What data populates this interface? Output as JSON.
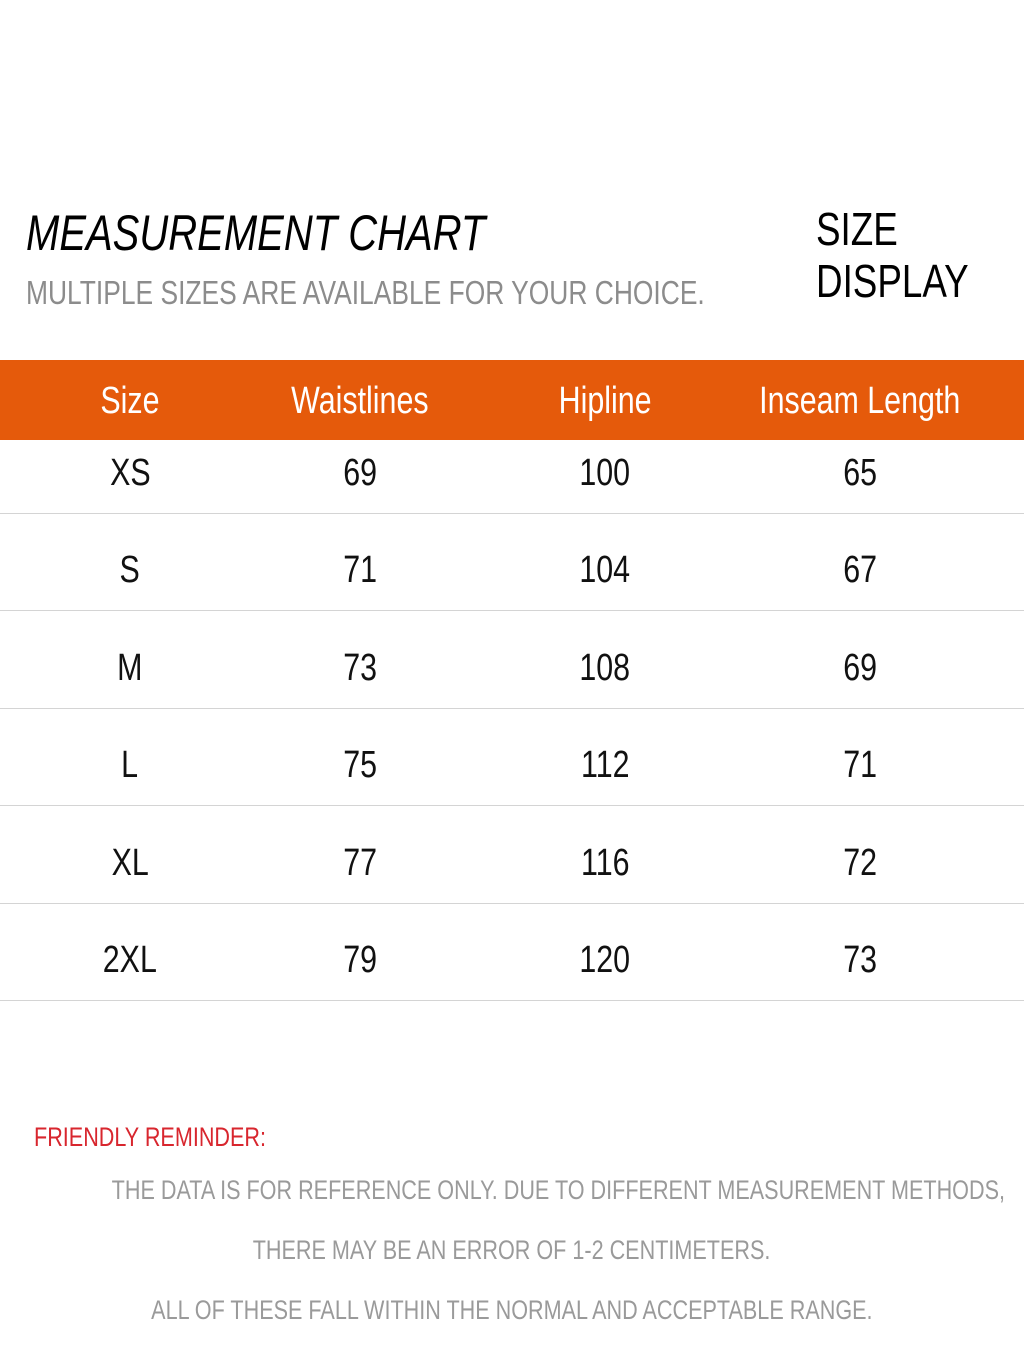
{
  "header": {
    "title": "MEASUREMENT CHART",
    "subtitle": "MULTIPLE SIZES ARE AVAILABLE FOR YOUR CHOICE.",
    "side": [
      "SIZE",
      "DISPLAY"
    ]
  },
  "table": {
    "columns": [
      "Size",
      "Waistlines",
      "Hipline",
      "Inseam Length"
    ],
    "rows": [
      [
        "XS",
        69,
        100,
        65
      ],
      [
        "S",
        71,
        104,
        67
      ],
      [
        "M",
        73,
        108,
        69
      ],
      [
        "L",
        75,
        112,
        71
      ],
      [
        "XL",
        77,
        116,
        72
      ],
      [
        "2XL",
        79,
        120,
        73
      ]
    ]
  },
  "reminder": {
    "title": "FRIENDLY REMINDER:",
    "lines": [
      "THE DATA IS FOR REFERENCE ONLY. DUE TO DIFFERENT MEASUREMENT METHODS,",
      "THERE MAY BE AN ERROR OF 1-2 CENTIMETERS.",
      "ALL OF THESE FALL WITHIN THE NORMAL AND ACCEPTABLE RANGE."
    ]
  }
}
